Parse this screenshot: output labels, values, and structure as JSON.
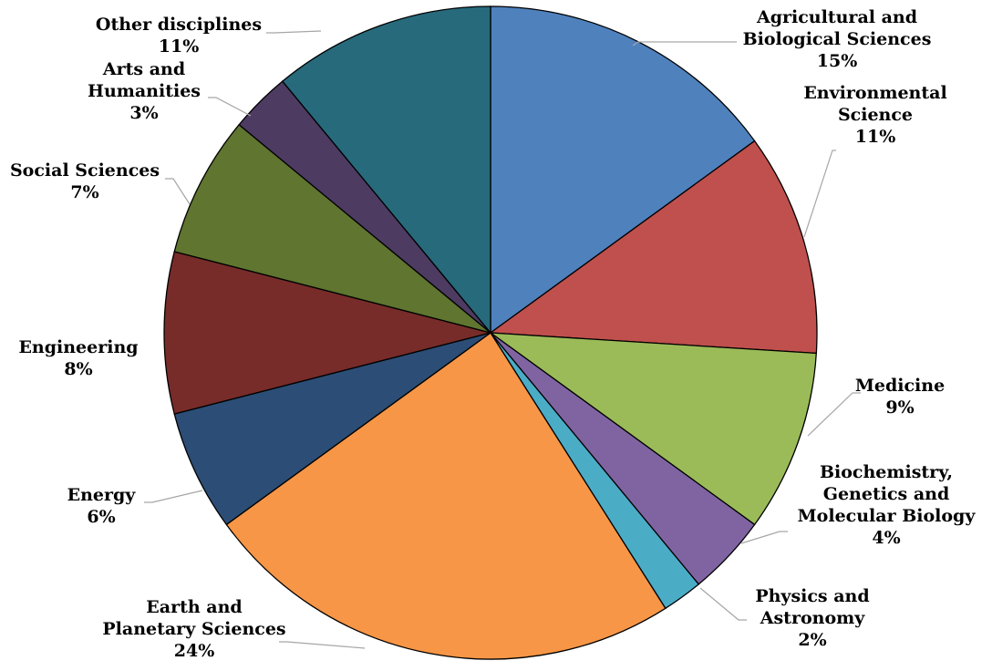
{
  "chart_data": {
    "type": "pie",
    "title": "",
    "start_angle_deg": 0,
    "direction": "clockwise",
    "slices": [
      {
        "label_lines": [
          "Agricultural and",
          "Biological Sciences"
        ],
        "value": 15,
        "value_label": "15%",
        "color": "#4F81BD"
      },
      {
        "label_lines": [
          "Environmental",
          "Science"
        ],
        "value": 11,
        "value_label": "11%",
        "color": "#C0504D"
      },
      {
        "label_lines": [
          "Medicine"
        ],
        "value": 9,
        "value_label": "9%",
        "color": "#9BBB59"
      },
      {
        "label_lines": [
          "Biochemistry,",
          "Genetics and",
          "Molecular Biology"
        ],
        "value": 4,
        "value_label": "4%",
        "color": "#8064A2"
      },
      {
        "label_lines": [
          "Physics and",
          "Astronomy"
        ],
        "value": 2,
        "value_label": "2%",
        "color": "#4BACC6"
      },
      {
        "label_lines": [
          "Earth and",
          "Planetary Sciences"
        ],
        "value": 24,
        "value_label": "24%",
        "color": "#F79646"
      },
      {
        "label_lines": [
          "Energy"
        ],
        "value": 6,
        "value_label": "6%",
        "color": "#2C4D75"
      },
      {
        "label_lines": [
          "Engineering"
        ],
        "value": 8,
        "value_label": "8%",
        "color": "#772C2A"
      },
      {
        "label_lines": [
          "Social Sciences"
        ],
        "value": 7,
        "value_label": "7%",
        "color": "#5F7530"
      },
      {
        "label_lines": [
          "Arts and",
          "Humanities"
        ],
        "value": 3,
        "value_label": "3%",
        "color": "#4D3B62"
      },
      {
        "label_lines": [
          "Other disciplines"
        ],
        "value": 11,
        "value_label": "11%",
        "color": "#276A7C"
      }
    ],
    "legend": "none",
    "data_labels": "outside-with-leader-lines"
  }
}
